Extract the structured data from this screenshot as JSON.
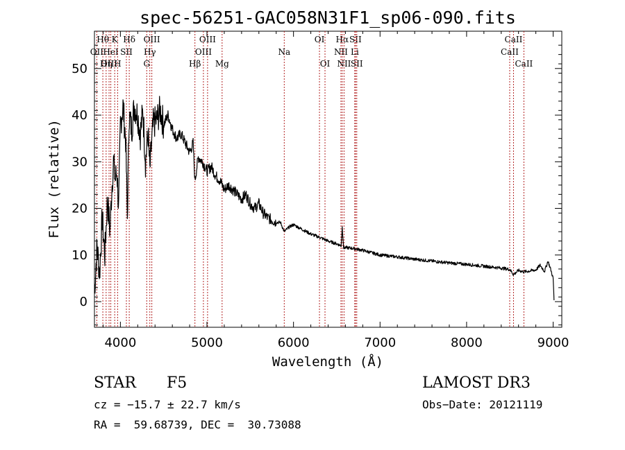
{
  "chart_data": {
    "type": "line",
    "title": "spec-56251-GAC058N31F1_sp06-090.fits",
    "xlabel": "Wavelength (Å)",
    "ylabel": "Flux (relative)",
    "xlim": [
      3700,
      9100
    ],
    "ylim": [
      -5.5,
      58
    ],
    "x_ticks": [
      4000,
      5000,
      6000,
      7000,
      8000,
      9000
    ],
    "y_ticks": [
      0,
      10,
      20,
      30,
      40,
      50
    ],
    "spectrum": {
      "name": "flux",
      "x": [
        3700,
        3730,
        3760,
        3790,
        3820,
        3850,
        3880,
        3900,
        3920,
        3940,
        3960,
        3980,
        4000,
        4030,
        4060,
        4080,
        4100,
        4130,
        4160,
        4200,
        4230,
        4260,
        4290,
        4320,
        4340,
        4360,
        4380,
        4420,
        4460,
        4500,
        4550,
        4600,
        4650,
        4700,
        4750,
        4800,
        4840,
        4861,
        4900,
        4950,
        5000,
        5050,
        5100,
        5150,
        5200,
        5250,
        5300,
        5350,
        5400,
        5450,
        5500,
        5550,
        5600,
        5650,
        5700,
        5750,
        5800,
        5850,
        5893,
        5950,
        6000,
        6100,
        6200,
        6300,
        6400,
        6500,
        6550,
        6563,
        6580,
        6600,
        6700,
        6800,
        6900,
        7000,
        7200,
        7400,
        7600,
        7800,
        8000,
        8200,
        8400,
        8500,
        8542,
        8600,
        8662,
        8700,
        8800,
        8850,
        8900,
        8940,
        8970,
        9000,
        9010
      ],
      "y": [
        2,
        12,
        6,
        18,
        10,
        22,
        15,
        24,
        30,
        26,
        28,
        20,
        38,
        42,
        35,
        18,
        40,
        37,
        42,
        40,
        36,
        41,
        30,
        36,
        28,
        34,
        38,
        39,
        41,
        38,
        40,
        37,
        35,
        36,
        34,
        32,
        34,
        26,
        31,
        30,
        28,
        29,
        27,
        26,
        24,
        25,
        24,
        23,
        22,
        23,
        21,
        20,
        21,
        19,
        18,
        17.5,
        17,
        17,
        15,
        16,
        16.5,
        15.5,
        14.5,
        13.8,
        13,
        12.4,
        12,
        16,
        11.5,
        11.6,
        11.4,
        11,
        10.5,
        10,
        9.6,
        9.1,
        8.7,
        8.3,
        8,
        7.6,
        7.2,
        6.9,
        5.8,
        6.7,
        6.4,
        6.5,
        6.8,
        7.8,
        6.5,
        8.7,
        7,
        5,
        0.3
      ]
    },
    "line_ids": [
      {
        "label": "Hθ",
        "wavelength": 3797,
        "row": 1
      },
      {
        "label": "OII",
        "wavelength": 3727,
        "row": 2
      },
      {
        "label": "OIII",
        "wavelength": 3869,
        "row": 3
      },
      {
        "label": "Hη",
        "wavelength": 3835,
        "row": 3
      },
      {
        "label": "HeI",
        "wavelength": 3889,
        "row": 2
      },
      {
        "label": "K",
        "wavelength": 3934,
        "row": 1
      },
      {
        "label": "H",
        "wavelength": 3968,
        "row": 3
      },
      {
        "label": "SII",
        "wavelength": 4069,
        "row": 2
      },
      {
        "label": "Hδ",
        "wavelength": 4102,
        "row": 1
      },
      {
        "label": "OIII",
        "wavelength": 4363,
        "row": 1
      },
      {
        "label": "Hγ",
        "wavelength": 4340,
        "row": 2
      },
      {
        "label": "G",
        "wavelength": 4304,
        "row": 3
      },
      {
        "label": "Hβ",
        "wavelength": 4861,
        "row": 3
      },
      {
        "label": "OIII",
        "wavelength": 5007,
        "row": 1
      },
      {
        "label": "OIII",
        "wavelength": 4959,
        "row": 2
      },
      {
        "label": "Mg",
        "wavelength": 5175,
        "row": 3
      },
      {
        "label": "Na",
        "wavelength": 5893,
        "row": 2
      },
      {
        "label": "OI",
        "wavelength": 6300,
        "row": 1
      },
      {
        "label": "OI",
        "wavelength": 6364,
        "row": 3
      },
      {
        "label": "Hα",
        "wavelength": 6563,
        "row": 1
      },
      {
        "label": "SII",
        "wavelength": 6716,
        "row": 1
      },
      {
        "label": "NII",
        "wavelength": 6548,
        "row": 2
      },
      {
        "label": "Li",
        "wavelength": 6708,
        "row": 2
      },
      {
        "label": "NII",
        "wavelength": 6584,
        "row": 3
      },
      {
        "label": "SII",
        "wavelength": 6731,
        "row": 3
      },
      {
        "label": "CaII",
        "wavelength": 8542,
        "row": 1
      },
      {
        "label": "CaII",
        "wavelength": 8498,
        "row": 2
      },
      {
        "label": "CaII",
        "wavelength": 8662,
        "row": 3
      }
    ]
  },
  "footer": {
    "object_class": "STAR",
    "subclass": "F5",
    "survey": "LAMOST DR3",
    "cz": "cz = −15.7 ± 22.7 km/s",
    "obs_date": "Obs−Date: 20121119",
    "coords": "RA =  59.68739, DEC =  30.73088"
  }
}
